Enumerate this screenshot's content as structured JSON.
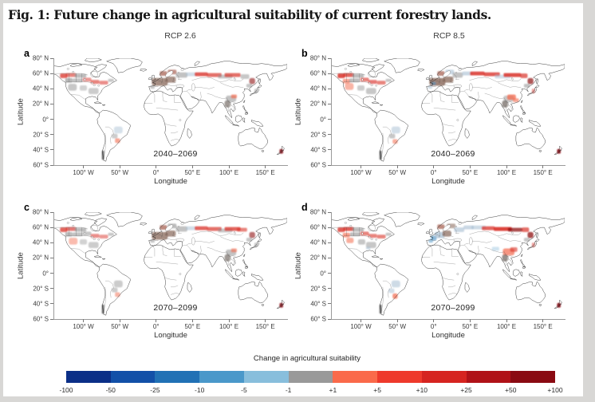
{
  "figure": {
    "title": "Fig. 1: Future change in agricultural suitability of current forestry lands."
  },
  "columns": [
    {
      "label": "RCP 2.6"
    },
    {
      "label": "RCP 8.5"
    }
  ],
  "axes": {
    "x_label": "Longitude",
    "y_label": "Latitude",
    "x_ticks": [
      {
        "label": "100° W",
        "lon": -100
      },
      {
        "label": "50° W",
        "lon": -50
      },
      {
        "label": "0°",
        "lon": 0
      },
      {
        "label": "50° E",
        "lon": 50
      },
      {
        "label": "100° E",
        "lon": 100
      },
      {
        "label": "150° E",
        "lon": 150
      }
    ],
    "y_ticks": [
      {
        "label": "80° N",
        "lat": 80
      },
      {
        "label": "60° N",
        "lat": 60
      },
      {
        "label": "40° N",
        "lat": 40
      },
      {
        "label": "20° N",
        "lat": 20
      },
      {
        "label": "0°",
        "lat": 0
      },
      {
        "label": "20° S",
        "lat": -20
      },
      {
        "label": "40° S",
        "lat": -40
      },
      {
        "label": "60° S",
        "lat": -60
      }
    ]
  },
  "panels": [
    {
      "letter": "a",
      "scenario": "RCP 2.6",
      "period": "2040–2069",
      "patches": [
        [
          -127,
          57,
          10,
          6,
          "red",
          0.75
        ],
        [
          -117,
          58,
          14,
          5,
          "red",
          0.6
        ],
        [
          -104,
          57,
          16,
          5,
          "gray",
          0.6
        ],
        [
          -120,
          51,
          10,
          6,
          "gray",
          0.65
        ],
        [
          -108,
          51,
          14,
          5,
          "gray",
          0.55
        ],
        [
          -95,
          52,
          12,
          5,
          "red",
          0.5
        ],
        [
          -84,
          49,
          12,
          5,
          "red",
          0.6
        ],
        [
          -72,
          48,
          12,
          5,
          "red",
          0.55
        ],
        [
          -62,
          51,
          8,
          4,
          "gray",
          0.5
        ],
        [
          -115,
          42,
          12,
          9,
          "gray",
          0.5
        ],
        [
          -100,
          41,
          10,
          7,
          "gray",
          0.4
        ],
        [
          -86,
          37,
          14,
          8,
          "gray",
          0.45
        ],
        [
          -52,
          -14,
          12,
          9,
          "bluegray",
          0.45
        ],
        [
          -57,
          -22,
          8,
          6,
          "gray",
          0.45
        ],
        [
          -53,
          -28,
          7,
          6,
          "orange",
          0.6
        ],
        [
          5,
          49,
          22,
          10,
          "euro",
          0.8
        ],
        [
          20,
          52,
          14,
          8,
          "euro",
          0.75
        ],
        [
          10,
          60,
          10,
          6,
          "redbrown",
          0.7
        ],
        [
          22,
          62,
          12,
          6,
          "redbrown",
          0.65
        ],
        [
          -5,
          42,
          6,
          4,
          "gray",
          0.5
        ],
        [
          35,
          58,
          16,
          7,
          "gray",
          0.55
        ],
        [
          48,
          59,
          14,
          5,
          "bluegray",
          0.5
        ],
        [
          62,
          59,
          18,
          5,
          "red",
          0.8
        ],
        [
          80,
          58,
          20,
          5,
          "red",
          0.7
        ],
        [
          95,
          56,
          20,
          5,
          "gray",
          0.5
        ],
        [
          105,
          58,
          22,
          5,
          "red",
          0.7
        ],
        [
          122,
          56,
          12,
          6,
          "gray",
          0.5
        ],
        [
          132,
          50,
          8,
          8,
          "darkred",
          0.6
        ],
        [
          128,
          44,
          8,
          5,
          "gray",
          0.5
        ],
        [
          103,
          27,
          14,
          8,
          "gray",
          0.55
        ],
        [
          107,
          30,
          8,
          5,
          "orange",
          0.65
        ],
        [
          98,
          20,
          8,
          9,
          "darkgray",
          0.6
        ],
        [
          137,
          37,
          4,
          6,
          "gray",
          0.5
        ],
        [
          172,
          -42,
          5,
          6,
          "darkred",
          0.85
        ],
        [
          -73,
          -47,
          3,
          12,
          "dark",
          0.7
        ]
      ]
    },
    {
      "letter": "b",
      "scenario": "RCP 8.5",
      "period": "2040–2069",
      "patches": [
        [
          -127,
          57,
          10,
          6,
          "red",
          0.85
        ],
        [
          -117,
          58,
          14,
          5,
          "red",
          0.75
        ],
        [
          -104,
          57,
          16,
          5,
          "gray",
          0.6
        ],
        [
          -120,
          50,
          10,
          6,
          "orange",
          0.6
        ],
        [
          -109,
          51,
          14,
          5,
          "gray",
          0.6
        ],
        [
          -95,
          52,
          12,
          5,
          "red",
          0.6
        ],
        [
          -84,
          49,
          12,
          5,
          "red",
          0.65
        ],
        [
          -72,
          48,
          12,
          5,
          "red",
          0.6
        ],
        [
          -62,
          51,
          8,
          4,
          "gray",
          0.5
        ],
        [
          -116,
          43,
          12,
          9,
          "orange",
          0.5
        ],
        [
          -100,
          41,
          10,
          7,
          "gray",
          0.45
        ],
        [
          -86,
          37,
          14,
          8,
          "gray",
          0.5
        ],
        [
          -52,
          -14,
          12,
          9,
          "bluegray",
          0.5
        ],
        [
          -57,
          -22,
          8,
          6,
          "gray",
          0.5
        ],
        [
          -53,
          -29,
          7,
          6,
          "orange",
          0.55
        ],
        [
          5,
          49,
          22,
          10,
          "euro",
          0.85
        ],
        [
          20,
          52,
          14,
          8,
          "euro",
          0.8
        ],
        [
          0,
          47,
          6,
          4,
          "blue",
          0.5
        ],
        [
          10,
          60,
          10,
          6,
          "redbrown",
          0.7
        ],
        [
          22,
          62,
          12,
          6,
          "bluegray",
          0.6
        ],
        [
          -5,
          42,
          6,
          4,
          "bluegray",
          0.5
        ],
        [
          33,
          58,
          14,
          7,
          "gray",
          0.55
        ],
        [
          46,
          60,
          14,
          5,
          "bluegray",
          0.6
        ],
        [
          60,
          60,
          20,
          5,
          "red",
          0.85
        ],
        [
          80,
          59,
          22,
          5,
          "red",
          0.8
        ],
        [
          95,
          56,
          22,
          5,
          "bluegray",
          0.5
        ],
        [
          108,
          58,
          24,
          5,
          "red",
          0.85
        ],
        [
          124,
          57,
          10,
          6,
          "red",
          0.7
        ],
        [
          133,
          50,
          8,
          8,
          "darkred",
          0.7
        ],
        [
          128,
          44,
          8,
          5,
          "gray",
          0.55
        ],
        [
          103,
          27,
          14,
          8,
          "gray",
          0.5
        ],
        [
          107,
          29,
          12,
          7,
          "orange",
          0.75
        ],
        [
          113,
          25,
          8,
          5,
          "orange",
          0.6
        ],
        [
          98,
          20,
          8,
          9,
          "darkgray",
          0.65
        ],
        [
          137,
          37,
          4,
          6,
          "red",
          0.5
        ],
        [
          172,
          -42,
          5,
          6,
          "darkred",
          0.9
        ],
        [
          -73,
          -47,
          3,
          12,
          "dark",
          0.7
        ]
      ]
    },
    {
      "letter": "c",
      "scenario": "RCP 2.6",
      "period": "2070–2099",
      "patches": [
        [
          -127,
          57,
          10,
          6,
          "red",
          0.75
        ],
        [
          -117,
          58,
          14,
          5,
          "red",
          0.65
        ],
        [
          -104,
          57,
          16,
          5,
          "gray",
          0.6
        ],
        [
          -120,
          51,
          10,
          6,
          "gray",
          0.6
        ],
        [
          -108,
          51,
          14,
          5,
          "gray",
          0.55
        ],
        [
          -95,
          52,
          12,
          5,
          "gray",
          0.5
        ],
        [
          -84,
          49,
          12,
          5,
          "red",
          0.55
        ],
        [
          -72,
          48,
          12,
          5,
          "red",
          0.5
        ],
        [
          -62,
          51,
          8,
          4,
          "gray",
          0.5
        ],
        [
          -114,
          42,
          12,
          9,
          "orange",
          0.45
        ],
        [
          -100,
          41,
          10,
          7,
          "gray",
          0.4
        ],
        [
          -86,
          37,
          14,
          8,
          "gray",
          0.45
        ],
        [
          -52,
          -14,
          12,
          9,
          "gray",
          0.45
        ],
        [
          -57,
          -22,
          8,
          6,
          "gray",
          0.45
        ],
        [
          -53,
          -28,
          7,
          6,
          "orange",
          0.5
        ],
        [
          5,
          49,
          22,
          10,
          "euro",
          0.8
        ],
        [
          20,
          52,
          14,
          8,
          "euro",
          0.75
        ],
        [
          10,
          60,
          10,
          6,
          "redbrown",
          0.7
        ],
        [
          22,
          62,
          12,
          6,
          "gray",
          0.6
        ],
        [
          -5,
          42,
          6,
          4,
          "gray",
          0.5
        ],
        [
          35,
          58,
          16,
          7,
          "gray",
          0.55
        ],
        [
          48,
          59,
          14,
          5,
          "bluegray",
          0.5
        ],
        [
          62,
          59,
          18,
          5,
          "red",
          0.75
        ],
        [
          80,
          58,
          20,
          5,
          "red",
          0.7
        ],
        [
          95,
          56,
          20,
          5,
          "gray",
          0.5
        ],
        [
          105,
          58,
          22,
          5,
          "red",
          0.75
        ],
        [
          118,
          57,
          14,
          5,
          "red",
          0.6
        ],
        [
          132,
          50,
          8,
          8,
          "darkred",
          0.6
        ],
        [
          128,
          44,
          8,
          5,
          "gray",
          0.5
        ],
        [
          103,
          27,
          14,
          8,
          "gray",
          0.55
        ],
        [
          107,
          30,
          8,
          5,
          "orange",
          0.6
        ],
        [
          98,
          20,
          8,
          9,
          "darkgray",
          0.6
        ],
        [
          137,
          37,
          4,
          6,
          "gray",
          0.5
        ],
        [
          172,
          -42,
          5,
          6,
          "darkred",
          0.85
        ],
        [
          -73,
          -47,
          3,
          12,
          "dark",
          0.7
        ]
      ]
    },
    {
      "letter": "d",
      "scenario": "RCP 8.5",
      "period": "2070–2099",
      "patches": [
        [
          -127,
          57,
          10,
          6,
          "red",
          0.8
        ],
        [
          -117,
          58,
          14,
          5,
          "red",
          0.8
        ],
        [
          -104,
          57,
          16,
          5,
          "gray",
          0.6
        ],
        [
          -120,
          50,
          10,
          6,
          "orange",
          0.65
        ],
        [
          -108,
          51,
          14,
          5,
          "gray",
          0.6
        ],
        [
          -95,
          52,
          12,
          5,
          "red",
          0.6
        ],
        [
          -84,
          49,
          12,
          5,
          "red",
          0.6
        ],
        [
          -72,
          48,
          12,
          5,
          "red",
          0.6
        ],
        [
          -62,
          51,
          8,
          4,
          "gray",
          0.5
        ],
        [
          -115,
          43,
          10,
          7,
          "orange",
          0.55
        ],
        [
          -99,
          41,
          10,
          7,
          "gray",
          0.5
        ],
        [
          -86,
          37,
          14,
          8,
          "gray",
          0.5
        ],
        [
          -90,
          33,
          6,
          4,
          "bluegray",
          0.5
        ],
        [
          -52,
          -14,
          12,
          9,
          "bluegray",
          0.55
        ],
        [
          -58,
          -23,
          8,
          6,
          "bluegray",
          0.5
        ],
        [
          -53,
          -30,
          7,
          7,
          "orange",
          0.7
        ],
        [
          0,
          46,
          8,
          6,
          "blue",
          0.65
        ],
        [
          8,
          50,
          14,
          8,
          "bluegray",
          0.7
        ],
        [
          18,
          52,
          12,
          8,
          "euro",
          0.75
        ],
        [
          10,
          61,
          10,
          6,
          "redbrown",
          0.7
        ],
        [
          24,
          62,
          12,
          6,
          "euro",
          0.6
        ],
        [
          -4,
          42,
          6,
          4,
          "blue",
          0.5
        ],
        [
          35,
          57,
          14,
          6,
          "bluegray",
          0.6
        ],
        [
          48,
          60,
          14,
          5,
          "bluegray",
          0.6
        ],
        [
          62,
          60,
          20,
          5,
          "bluegray",
          0.55
        ],
        [
          75,
          59,
          18,
          5,
          "red",
          0.75
        ],
        [
          95,
          58,
          25,
          5,
          "red",
          0.9
        ],
        [
          112,
          57,
          20,
          5,
          "darkred",
          0.75
        ],
        [
          126,
          57,
          10,
          6,
          "red",
          0.7
        ],
        [
          133,
          50,
          8,
          8,
          "darkred",
          0.75
        ],
        [
          128,
          44,
          8,
          5,
          "gray",
          0.5
        ],
        [
          85,
          32,
          10,
          5,
          "lightblue",
          0.55
        ],
        [
          103,
          28,
          16,
          9,
          "orange",
          0.7
        ],
        [
          110,
          31,
          10,
          6,
          "red",
          0.6
        ],
        [
          98,
          20,
          8,
          9,
          "darkgray",
          0.65
        ],
        [
          137,
          37,
          4,
          6,
          "red",
          0.5
        ],
        [
          172,
          -42,
          5,
          6,
          "darkred",
          0.9
        ],
        [
          -73,
          -47,
          3,
          12,
          "dark",
          0.7
        ]
      ]
    }
  ],
  "colorbar": {
    "title": "Change in agricultural suitability",
    "tick_labels": [
      "-100",
      "-50",
      "-25",
      "-10",
      "-5",
      "-1",
      "+1",
      "+5",
      "+10",
      "+25",
      "+50",
      "+100"
    ],
    "segment_colors": [
      "#0b2f87",
      "#1250a8",
      "#2171b5",
      "#4a98ca",
      "#88bedc",
      "#999999",
      "#fa6a4a",
      "#ee3a2c",
      "#d62420",
      "#b01218",
      "#8a0a12"
    ]
  },
  "palette": {
    "red": "#d9322a",
    "darkred": "#8f0f14",
    "orange": "#f4694c",
    "euro": "#8e6f62",
    "redbrown": "#a3584a",
    "gray": "#8f8f8f",
    "bluegray": "#a5bdd1",
    "lightblue": "#a8cce4",
    "blue": "#4a94c8",
    "darkgray": "#5f564f",
    "dark": "#2f2f2f"
  }
}
